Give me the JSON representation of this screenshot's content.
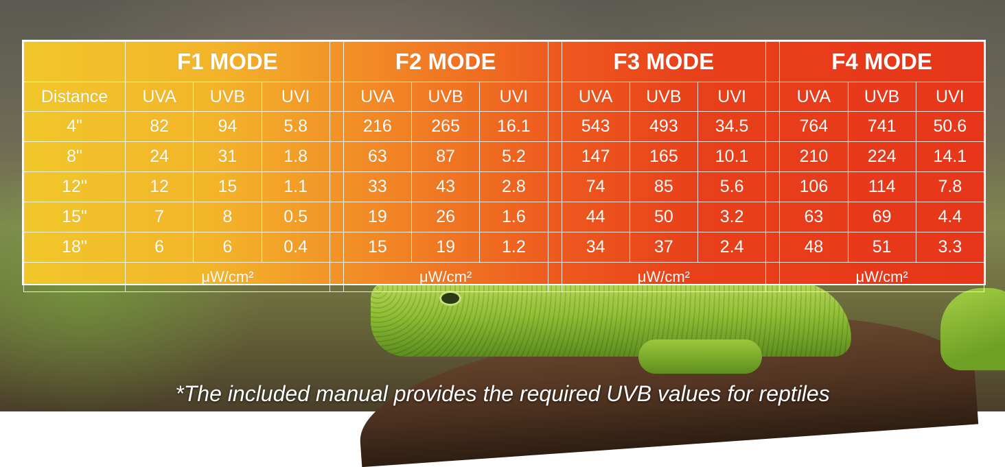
{
  "modes": [
    {
      "name": "F1 MODE"
    },
    {
      "name": "F2 MODE"
    },
    {
      "name": "F3 MODE"
    },
    {
      "name": "F4 MODE"
    }
  ],
  "columns": {
    "distance": "Distance",
    "uva": "UVA",
    "uvb": "UVB",
    "uvi": "UVI"
  },
  "rows": [
    {
      "distance": "4\"",
      "values": [
        [
          "82",
          "94",
          "5.8"
        ],
        [
          "216",
          "265",
          "16.1"
        ],
        [
          "543",
          "493",
          "34.5"
        ],
        [
          "764",
          "741",
          "50.6"
        ]
      ]
    },
    {
      "distance": "8\"",
      "values": [
        [
          "24",
          "31",
          "1.8"
        ],
        [
          "63",
          "87",
          "5.2"
        ],
        [
          "147",
          "165",
          "10.1"
        ],
        [
          "210",
          "224",
          "14.1"
        ]
      ]
    },
    {
      "distance": "12\"",
      "values": [
        [
          "12",
          "15",
          "1.1"
        ],
        [
          "33",
          "43",
          "2.8"
        ],
        [
          "74",
          "85",
          "5.6"
        ],
        [
          "106",
          "114",
          "7.8"
        ]
      ]
    },
    {
      "distance": "15\"",
      "values": [
        [
          "7",
          "8",
          "0.5"
        ],
        [
          "19",
          "26",
          "1.6"
        ],
        [
          "44",
          "50",
          "3.2"
        ],
        [
          "63",
          "69",
          "4.4"
        ]
      ]
    },
    {
      "distance": "18\"",
      "values": [
        [
          "6",
          "6",
          "0.4"
        ],
        [
          "15",
          "19",
          "1.2"
        ],
        [
          "34",
          "37",
          "2.4"
        ],
        [
          "48",
          "51",
          "3.3"
        ]
      ]
    }
  ],
  "unit": "μW/cm²",
  "footnote": "*The included manual provides the required UVB values for reptiles",
  "colors": {
    "start": "#f1c72a",
    "end": "#e7361a",
    "text": "#ffffff"
  }
}
